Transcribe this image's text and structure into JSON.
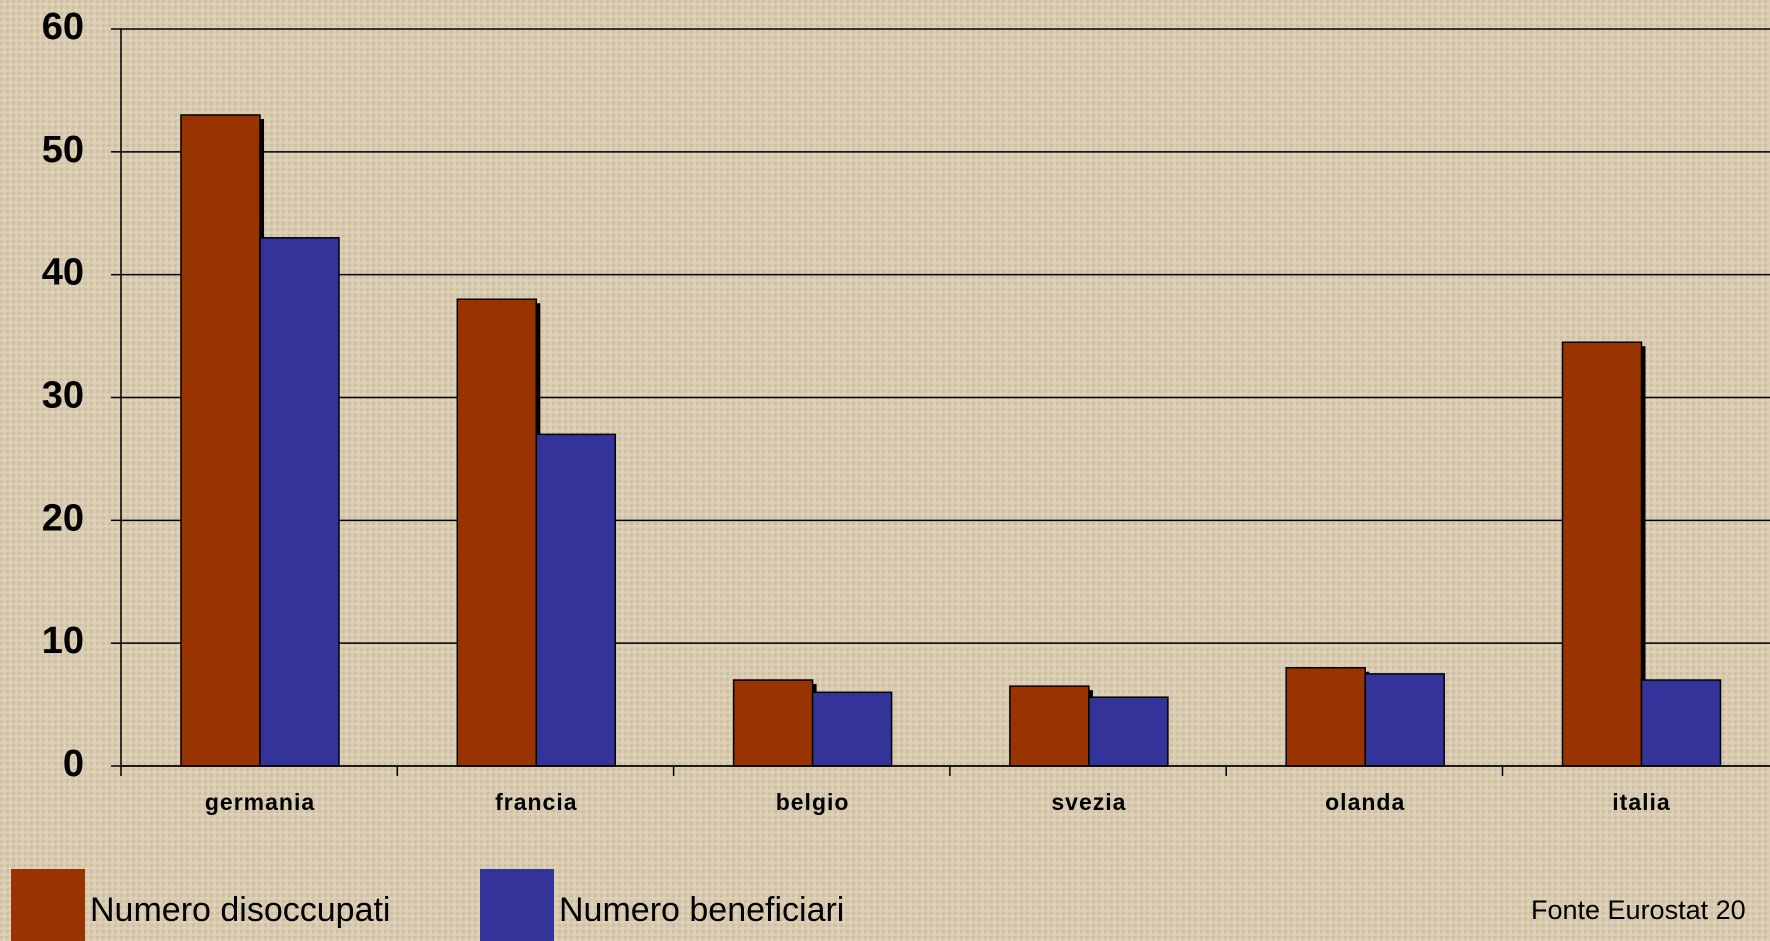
{
  "chart_data": {
    "type": "bar",
    "categories": [
      "germania",
      "francia",
      "belgio",
      "svezia",
      "olanda",
      "italia"
    ],
    "series": [
      {
        "name": "Numero disoccupati",
        "color": "#993300",
        "values": [
          53,
          38,
          7,
          6.5,
          8,
          34.5
        ]
      },
      {
        "name": "Numero beneficiari",
        "color": "#333399",
        "values": [
          43,
          27,
          6,
          5.6,
          7.5,
          7
        ]
      }
    ],
    "ylim": [
      0,
      60
    ],
    "yticks": [
      0,
      10,
      20,
      30,
      40,
      50,
      60
    ],
    "grid": true,
    "legend": "bottom",
    "annotation": "Fonte Eurostat 20"
  }
}
